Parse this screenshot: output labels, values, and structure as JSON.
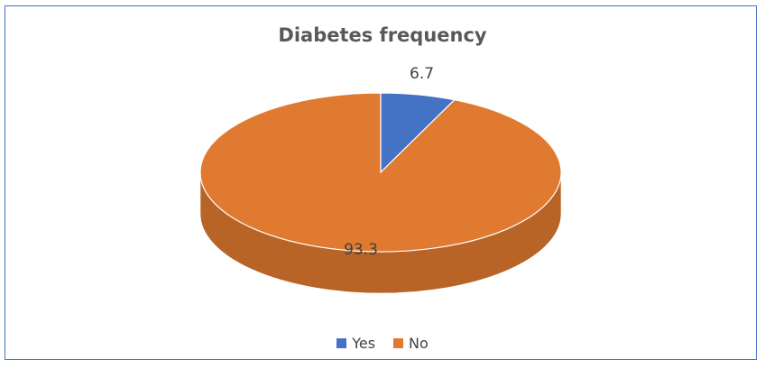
{
  "chart_data": {
    "type": "pie",
    "title": "Diabetes frequency",
    "three_d": true,
    "categories": [
      "Yes",
      "No"
    ],
    "values": [
      6.7,
      93.3
    ],
    "data_labels": [
      "6.7",
      "93.3"
    ],
    "colors": [
      "#4472c4",
      "#e07a30"
    ],
    "legend_position": "bottom",
    "legend": [
      {
        "label": "Yes",
        "color": "#4472c4"
      },
      {
        "label": "No",
        "color": "#e07a30"
      }
    ]
  }
}
